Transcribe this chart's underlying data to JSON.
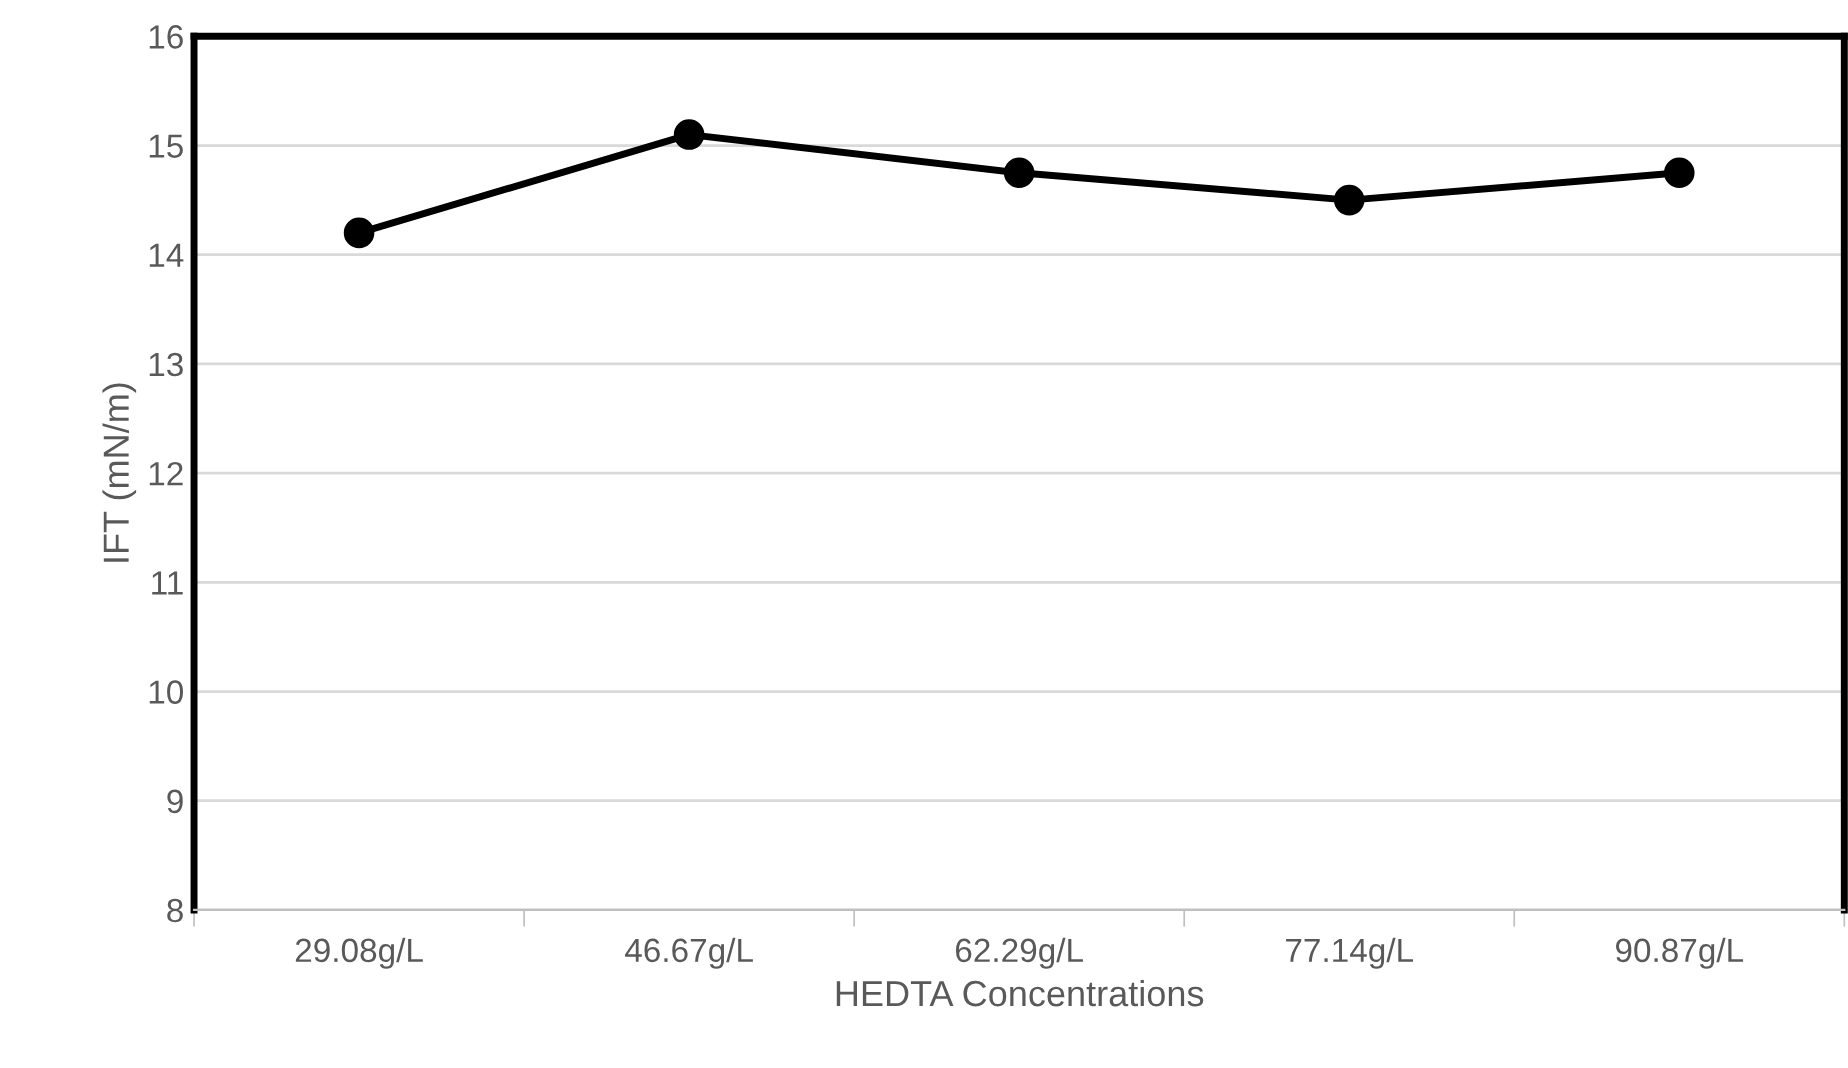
{
  "chart_data": {
    "type": "line",
    "xlabel": "HEDTA Concentrations",
    "ylabel": "IFT (mN/m)",
    "categories": [
      "29.08g/L",
      "46.67g/L",
      "62.29g/L",
      "77.14g/L",
      "90.87g/L"
    ],
    "series": [
      {
        "color": "#000000",
        "values": [
          14.2,
          15.1,
          14.75,
          14.5,
          14.75
        ]
      }
    ],
    "ylim": [
      8,
      16
    ],
    "yticks": [
      8,
      9,
      10,
      11,
      12,
      13,
      14,
      15,
      16
    ],
    "grid": "y",
    "marker": "circle",
    "line_style": "solid"
  }
}
